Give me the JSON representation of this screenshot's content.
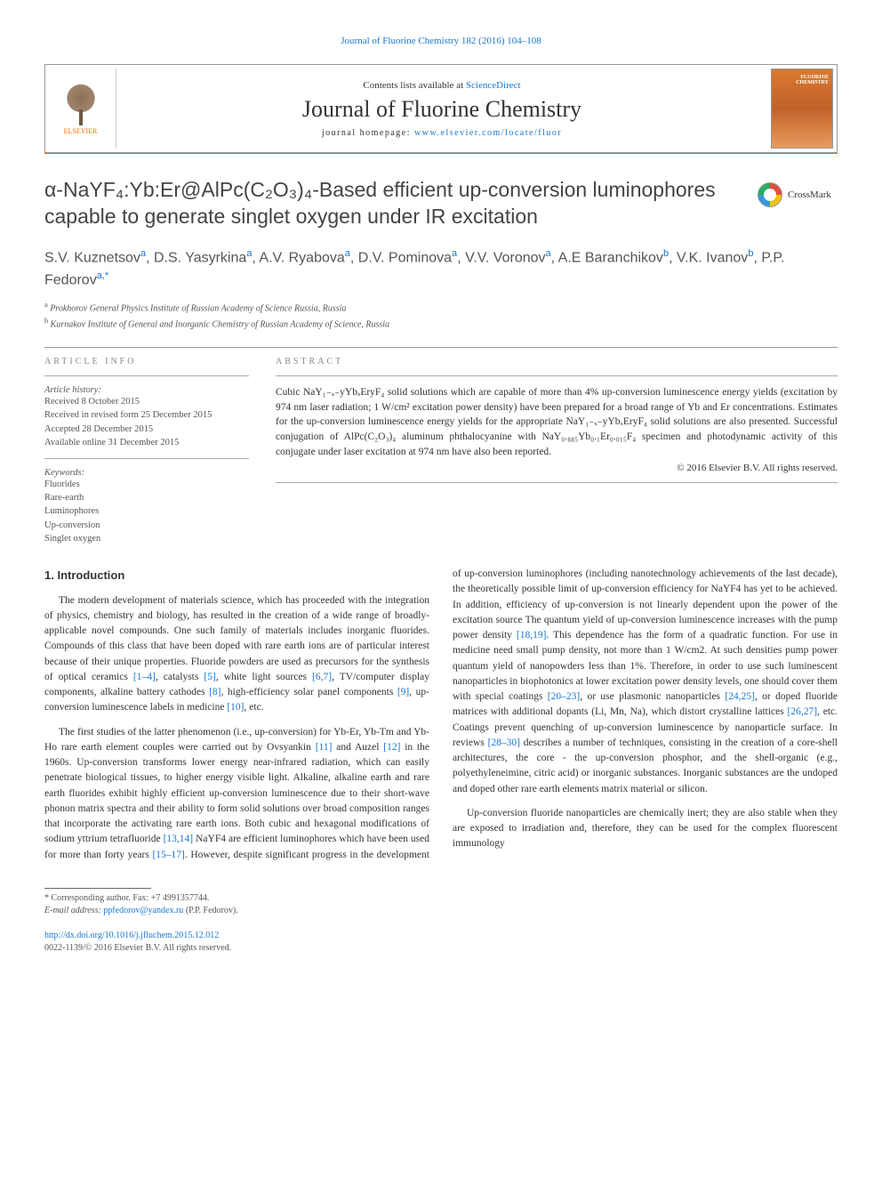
{
  "header": {
    "citation": "Journal of Fluorine Chemistry 182 (2016) 104–108",
    "contents_prefix": "Contents lists available at ",
    "contents_link": "ScienceDirect",
    "journal_name": "Journal of Fluorine Chemistry",
    "homepage_prefix": "journal homepage: ",
    "homepage_link": "www.elsevier.com/locate/fluor",
    "publisher": "ELSEVIER",
    "cover_label": "FLUORINE CHEMISTRY"
  },
  "crossmark": {
    "label": "CrossMark"
  },
  "title": "α-NaYF₄:Yb:Er@AlPc(C₂O₃)₄-Based efficient up-conversion luminophores capable to generate singlet oxygen under IR excitation",
  "authors_html": "S.V. Kuznetsov<sup>a</sup>, D.S. Yasyrkina<sup>a</sup>, A.V. Ryabova<sup>a</sup>, D.V. Pominova<sup>a</sup>, V.V. Voronov<sup>a</sup>, A.E Baranchikov<sup>b</sup>, V.K. Ivanov<sup>b</sup>, P.P. Fedorov<sup>a,*</sup>",
  "affiliations": [
    {
      "sup": "a",
      "text": "Prokhorov General Physics Institute of Russian Academy of Science Russia, Russia"
    },
    {
      "sup": "b",
      "text": "Kurnakov Institute of General and Inorganic Chemistry of Russian Academy of Science, Russia"
    }
  ],
  "article_info": {
    "label": "ARTICLE INFO",
    "history_label": "Article history:",
    "history": [
      "Received 8 October 2015",
      "Received in revised form 25 December 2015",
      "Accepted 28 December 2015",
      "Available online 31 December 2015"
    ],
    "keywords_label": "Keywords:",
    "keywords": [
      "Fluorides",
      "Rare-earth",
      "Luminophores",
      "Up-conversion",
      "Singlet oxygen"
    ]
  },
  "abstract": {
    "label": "ABSTRACT",
    "text": "Cubic NaY₁₋ₓ₋yYbₓEryF₄ solid solutions which are capable of more than 4% up-conversion luminescence energy yields (excitation by 974 nm laser radiation; 1 W/cm² excitation power density) have been prepared for a broad range of Yb and Er concentrations. Estimates for the up-conversion luminescence energy yields for the appropriate NaY₁₋ₓ₋yYbₓEryF₄ solid solutions are also presented. Successful conjugation of AlPc(C₂O₃)₄ aluminum phthalocyanine with NaY₀.₈₈₅Yb₀.₁Er₀.₀₁₅F₄ specimen and photodynamic activity of this conjugate under laser excitation at 974 nm have also been reported.",
    "copyright": "© 2016 Elsevier B.V. All rights reserved."
  },
  "body": {
    "heading": "1. Introduction",
    "p1_pre": "The modern development of materials science, which has proceeded with the integration of physics, chemistry and biology, has resulted in the creation of a wide range of broadly-applicable novel compounds. One such family of materials includes inorganic fluorides. Compounds of this class that have been doped with rare earth ions are of particular interest because of their unique properties. Fluoride powders are used as precursors for the synthesis of optical ceramics ",
    "r1": "[1–4]",
    "p1_m1": ", catalysts ",
    "r2": "[5]",
    "p1_m2": ", white light sources ",
    "r3": "[6,7]",
    "p1_m3": ", TV/computer display components, alkaline battery cathodes ",
    "r4": "[8]",
    "p1_m4": ", high-efficiency solar panel components ",
    "r5": "[9]",
    "p1_m5": ", up-conversion luminescence labels in medicine ",
    "r6": "[10]",
    "p1_post": ", etc.",
    "p2_pre": "The first studies of the latter phenomenon (i.e., up-conversion) for Yb-Er, Yb-Tm and Yb-Ho rare earth element couples were carried out by Ovsyankin ",
    "r7": "[11]",
    "p2_m1": " and Auzel ",
    "r8": "[12]",
    "p2_m2": " in the 1960s. Up-conversion transforms lower energy near-infrared radiation, which can easily penetrate biological tissues, to higher energy visible light. Alkaline, alkaline earth and rare earth fluorides exhibit highly efficient up-conversion luminescence due to their short-wave phonon matrix spectra and their ability to form solid solutions over broad composition ranges that incorporate the activating rare earth ions. Both cubic and hexagonal modifications of sodium yttrium tetrafluoride ",
    "r9": "[13,14]",
    "p2_m3": " NaYF4 are efficient luminophores which have been used for more than forty years ",
    "r10": "[15–17]",
    "p2_m4": ". However, despite significant progress in the development of up-conversion luminophores (including nanotechnology achievements of the last decade), the theoretically possible limit of up-conversion efficiency for NaYF4 has yet to be achieved. In addition, efficiency of up-conversion is not linearly dependent upon the power of the excitation source The quantum yield of up-conversion luminescence increases with the pump power density ",
    "r11": "[18,19]",
    "p2_m5": ". This dependence has the form of a quadratic function. For use in medicine need small pump density, not more than 1 W/cm2. At such densities pump power quantum yield of nanopowders less than 1%. Therefore, in order to use such luminescent nanoparticles in biophotonics at lower excitation power density levels, one should cover them with special coatings ",
    "r12": "[20–23]",
    "p2_m6": ", or use plasmonic nanoparticles ",
    "r13": "[24,25]",
    "p2_m7": ", or doped fluoride matrices with additional dopants (Li, Mn, Na), which distort crystalline lattices ",
    "r14": "[26,27]",
    "p2_m8": ", etc. Coatings prevent quenching of up-conversion luminescence by nanoparticle surface. In reviews ",
    "r15": "[28–30]",
    "p2_post": " describes a number of techniques, consisting in the creation of a core-shell architectures, the core - the up-conversion phosphor, and the shell-organic (e.g., polyethyleneimine, citric acid) or inorganic substances. Inorganic substances are the undoped and doped other rare earth elements matrix material or silicon.",
    "p3": "Up-conversion fluoride nanoparticles are chemically inert; they are also stable when they are exposed to irradiation and, therefore, they can be used for the complex fluorescent immunology"
  },
  "footnote": {
    "corr": "* Corresponding author. Fax: +7 4991357744.",
    "email_label": "E-mail address: ",
    "email": "ppfedorov@yandex.ru",
    "email_suffix": " (P.P. Fedorov)."
  },
  "footer": {
    "doi": "http://dx.doi.org/10.1016/j.jfluchem.2015.12.012",
    "issn": "0022-1139/© 2016 Elsevier B.V. All rights reserved."
  },
  "colors": {
    "link": "#1976d2",
    "accent": "#ff6b00",
    "text": "#333333",
    "muted": "#555555"
  }
}
